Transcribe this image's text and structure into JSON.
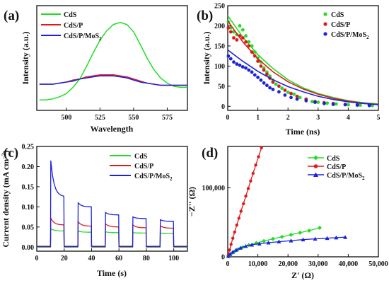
{
  "colors": {
    "green": "#22dd22",
    "red": "#e01a1a",
    "blue": "#1a22dd",
    "axis": "#111111"
  },
  "chart_data": [
    {
      "panel": "(a)",
      "type": "line",
      "xlabel": "Wavelength",
      "ylabel": "Intensity (a.u.)",
      "xlim": [
        478,
        590
      ],
      "ylim": [
        0,
        1
      ],
      "x_ticks": [
        500,
        525,
        550,
        575
      ],
      "y_ticks_shown": false,
      "legend": {
        "placement": "top-left"
      },
      "series": [
        {
          "name": "CdS",
          "color": "green",
          "x": [
            480,
            485,
            490,
            495,
            500,
            505,
            510,
            515,
            520,
            525,
            530,
            535,
            540,
            545,
            550,
            555,
            560,
            565,
            570,
            575,
            580,
            585,
            590
          ],
          "y": [
            0.1,
            0.1,
            0.11,
            0.13,
            0.16,
            0.22,
            0.3,
            0.42,
            0.55,
            0.67,
            0.76,
            0.82,
            0.84,
            0.82,
            0.75,
            0.63,
            0.5,
            0.39,
            0.31,
            0.26,
            0.23,
            0.22,
            0.22
          ]
        },
        {
          "name": "CdS/P",
          "color": "red",
          "x": [
            480,
            485,
            490,
            495,
            500,
            505,
            510,
            515,
            520,
            525,
            530,
            535,
            540,
            545,
            550,
            555,
            560,
            565,
            570,
            575,
            580,
            585,
            590
          ],
          "y": [
            0.25,
            0.25,
            0.25,
            0.26,
            0.27,
            0.29,
            0.3,
            0.32,
            0.33,
            0.34,
            0.34,
            0.34,
            0.33,
            0.32,
            0.3,
            0.28,
            0.26,
            0.25,
            0.24,
            0.24,
            0.24,
            0.24,
            0.24
          ]
        },
        {
          "name": "CdS/P/MoS2",
          "color": "blue",
          "x": [
            480,
            485,
            490,
            495,
            500,
            505,
            510,
            515,
            520,
            525,
            530,
            535,
            540,
            545,
            550,
            555,
            560,
            565,
            570,
            575,
            580,
            585,
            590
          ],
          "y": [
            0.25,
            0.25,
            0.25,
            0.26,
            0.27,
            0.28,
            0.3,
            0.31,
            0.32,
            0.33,
            0.33,
            0.33,
            0.32,
            0.31,
            0.29,
            0.27,
            0.26,
            0.25,
            0.24,
            0.24,
            0.24,
            0.24,
            0.24
          ]
        }
      ]
    },
    {
      "panel": "(b)",
      "type": "scatter",
      "xlabel": "Time (ns)",
      "ylabel": "Intensity (a.u.)",
      "xlim": [
        0,
        5
      ],
      "ylim": [
        -10,
        250
      ],
      "x_ticks": [
        0,
        1,
        2,
        3,
        4,
        5
      ],
      "y_ticks": [
        0,
        50,
        100,
        150,
        200,
        250
      ],
      "legend": {
        "placement": "top-right"
      },
      "series": [
        {
          "name": "CdS",
          "color": "green",
          "marker": "circle",
          "points": [
            [
              0.02,
              210
            ],
            [
              0.1,
              195
            ],
            [
              0.2,
              185
            ],
            [
              0.3,
              178
            ],
            [
              0.4,
              200
            ],
            [
              0.5,
              190
            ],
            [
              0.6,
              175
            ],
            [
              0.7,
              160
            ],
            [
              0.8,
              150
            ],
            [
              0.9,
              135
            ],
            [
              1.0,
              120
            ],
            [
              1.1,
              110
            ],
            [
              1.2,
              95
            ],
            [
              1.3,
              85
            ],
            [
              1.4,
              75
            ],
            [
              1.5,
              65
            ],
            [
              1.6,
              55
            ],
            [
              1.8,
              45
            ],
            [
              2.0,
              35
            ],
            [
              2.2,
              30
            ],
            [
              2.4,
              22
            ],
            [
              2.6,
              18
            ],
            [
              2.8,
              12
            ],
            [
              3.0,
              10
            ],
            [
              3.3,
              8
            ],
            [
              3.6,
              6
            ],
            [
              4.0,
              4
            ],
            [
              4.4,
              3
            ],
            [
              4.8,
              2
            ]
          ],
          "fit": [
            [
              0,
              225
            ],
            [
              0.5,
              172
            ],
            [
              1,
              128
            ],
            [
              1.5,
              94
            ],
            [
              2,
              66
            ],
            [
              2.5,
              46
            ],
            [
              3,
              32
            ],
            [
              3.5,
              22
            ],
            [
              4,
              14
            ],
            [
              4.5,
              9
            ],
            [
              5,
              6
            ]
          ]
        },
        {
          "name": "CdS/P",
          "color": "red",
          "marker": "circle",
          "points": [
            [
              0.02,
              195
            ],
            [
              0.1,
              185
            ],
            [
              0.2,
              170
            ],
            [
              0.3,
              165
            ],
            [
              0.4,
              175
            ],
            [
              0.5,
              170
            ],
            [
              0.6,
              160
            ],
            [
              0.7,
              150
            ],
            [
              0.8,
              135
            ],
            [
              0.9,
              125
            ],
            [
              1.0,
              112
            ],
            [
              1.1,
              100
            ],
            [
              1.2,
              90
            ],
            [
              1.3,
              80
            ],
            [
              1.4,
              70
            ],
            [
              1.5,
              60
            ],
            [
              1.7,
              50
            ],
            [
              1.9,
              40
            ],
            [
              2.1,
              32
            ],
            [
              2.3,
              25
            ],
            [
              2.6,
              18
            ],
            [
              2.9,
              12
            ],
            [
              3.2,
              9
            ],
            [
              3.5,
              7
            ],
            [
              3.9,
              5
            ],
            [
              4.3,
              4
            ],
            [
              4.7,
              3
            ]
          ],
          "fit": [
            [
              0,
              212
            ],
            [
              0.5,
              160
            ],
            [
              1,
              118
            ],
            [
              1.5,
              86
            ],
            [
              2,
              61
            ],
            [
              2.5,
              43
            ],
            [
              3,
              30
            ],
            [
              3.5,
              20
            ],
            [
              4,
              13
            ],
            [
              4.5,
              8
            ],
            [
              5,
              5
            ]
          ]
        },
        {
          "name": "CdS/P/MoS2",
          "color": "blue",
          "marker": "circle",
          "points": [
            [
              0.02,
              125
            ],
            [
              0.1,
              118
            ],
            [
              0.2,
              110
            ],
            [
              0.3,
              105
            ],
            [
              0.4,
              102
            ],
            [
              0.5,
              98
            ],
            [
              0.6,
              95
            ],
            [
              0.7,
              90
            ],
            [
              0.8,
              85
            ],
            [
              0.9,
              78
            ],
            [
              1.0,
              72
            ],
            [
              1.1,
              65
            ],
            [
              1.2,
              58
            ],
            [
              1.3,
              52
            ],
            [
              1.4,
              46
            ],
            [
              1.5,
              42
            ],
            [
              1.7,
              36
            ],
            [
              1.9,
              28
            ],
            [
              2.1,
              22
            ],
            [
              2.3,
              18
            ],
            [
              2.6,
              14
            ],
            [
              2.9,
              10
            ],
            [
              3.2,
              7
            ],
            [
              3.5,
              5
            ],
            [
              3.9,
              4
            ],
            [
              4.3,
              3
            ],
            [
              4.7,
              2
            ]
          ],
          "fit": [
            [
              0,
              140
            ],
            [
              0.5,
              112
            ],
            [
              1,
              87
            ],
            [
              1.5,
              66
            ],
            [
              2,
              49
            ],
            [
              2.5,
              36
            ],
            [
              3,
              25
            ],
            [
              3.5,
              17
            ],
            [
              4,
              11
            ],
            [
              4.5,
              7
            ],
            [
              5,
              4
            ]
          ]
        }
      ]
    },
    {
      "panel": "(c)",
      "type": "line",
      "xlabel": "Time (s)",
      "ylabel": "Current density (mA cm⁻²)",
      "xlim": [
        0,
        110
      ],
      "ylim": [
        -0.01,
        0.25
      ],
      "x_ticks": [
        0,
        20,
        40,
        60,
        80,
        100
      ],
      "y_ticks": [
        0.0,
        0.05,
        0.1,
        0.15,
        0.2,
        0.25
      ],
      "legend": {
        "placement": "top-right"
      },
      "on_intervals": [
        [
          10,
          20
        ],
        [
          30,
          40
        ],
        [
          50,
          60
        ],
        [
          70,
          80
        ],
        [
          90,
          100
        ]
      ],
      "series": [
        {
          "name": "CdS",
          "color": "green",
          "dark": 0.0,
          "on_start": [
            0.046,
            0.04,
            0.038,
            0.036,
            0.035
          ],
          "on_end": [
            0.04,
            0.037,
            0.036,
            0.035,
            0.034
          ]
        },
        {
          "name": "CdS/P",
          "color": "red",
          "dark": 0.001,
          "on_start": [
            0.072,
            0.063,
            0.058,
            0.055,
            0.053
          ],
          "on_end": [
            0.055,
            0.052,
            0.05,
            0.048,
            0.047
          ]
        },
        {
          "name": "CdS/P/MoS2",
          "color": "blue",
          "dark": 0.002,
          "on_start": [
            0.215,
            0.11,
            0.086,
            0.075,
            0.068
          ],
          "on_end": [
            0.125,
            0.1,
            0.08,
            0.071,
            0.064
          ]
        }
      ]
    },
    {
      "panel": "(d)",
      "type": "scatter",
      "xlabel": "Z' (Ω)",
      "ylabel": "−Z'' (Ω)",
      "xlim": [
        0,
        50000
      ],
      "ylim": [
        0,
        160000
      ],
      "x_ticks": [
        0,
        10000,
        20000,
        30000,
        40000,
        50000
      ],
      "x_tick_labels": [
        "0",
        "10,000",
        "20,000",
        "30,000",
        "40,000",
        "50,000"
      ],
      "y_ticks": [
        0,
        100000
      ],
      "y_tick_labels": [
        "0",
        "100,000"
      ],
      "legend": {
        "placement": "top-right"
      },
      "series": [
        {
          "name": "CdS",
          "color": "green",
          "marker": "diamond",
          "points": [
            [
              200,
              1000
            ],
            [
              800,
              3500
            ],
            [
              1600,
              6000
            ],
            [
              2500,
              8500
            ],
            [
              3500,
              11000
            ],
            [
              5000,
              14000
            ],
            [
              7000,
              17000
            ],
            [
              9500,
              20000
            ],
            [
              12000,
              23000
            ],
            [
              15000,
              26000
            ],
            [
              18000,
              29000
            ],
            [
              21000,
              32000
            ],
            [
              24000,
              35000
            ],
            [
              27000,
              38000
            ],
            [
              30500,
              42000
            ]
          ]
        },
        {
          "name": "CdS/P",
          "color": "red",
          "marker": "circle",
          "points": [
            [
              200,
              3000
            ],
            [
              600,
              10000
            ],
            [
              1100,
              18000
            ],
            [
              1700,
              27000
            ],
            [
              2300,
              36000
            ],
            [
              3000,
              46000
            ],
            [
              3700,
              56000
            ],
            [
              4400,
              66000
            ],
            [
              5200,
              77000
            ],
            [
              6000,
              88000
            ],
            [
              6800,
              99000
            ],
            [
              7600,
              110000
            ],
            [
              8400,
              121000
            ],
            [
              9300,
              133000
            ],
            [
              10200,
              145000
            ],
            [
              11200,
              158000
            ]
          ]
        },
        {
          "name": "CdS/P/MoS2",
          "color": "blue",
          "marker": "triangle",
          "points": [
            [
              200,
              1000
            ],
            [
              800,
              4000
            ],
            [
              1700,
              7000
            ],
            [
              2800,
              10000
            ],
            [
              4200,
              13000
            ],
            [
              6000,
              15500
            ],
            [
              8000,
              17500
            ],
            [
              10500,
              19000
            ],
            [
              13500,
              20500
            ],
            [
              17000,
              22000
            ],
            [
              21000,
              23500
            ],
            [
              25000,
              25000
            ],
            [
              29000,
              26000
            ],
            [
              33000,
              27000
            ],
            [
              36000,
              27800
            ],
            [
              39000,
              28500
            ]
          ]
        }
      ]
    }
  ]
}
